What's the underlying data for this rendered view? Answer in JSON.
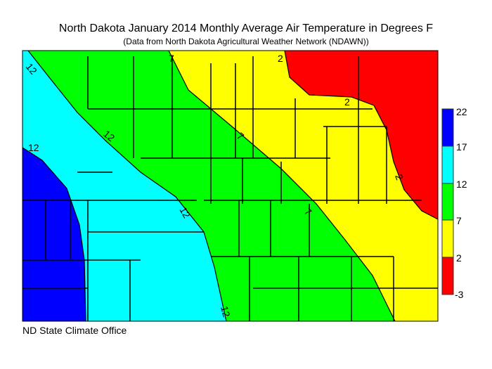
{
  "title": "North Dakota January 2014 Monthly Average Air Temperature in Degrees F",
  "subtitle": "(Data from North Dakota Agricultural Weather Network (NDAWN))",
  "footer": "ND State Climate Office",
  "legend": {
    "ticks": [
      "22",
      "17",
      "12",
      "7",
      "2",
      "-3"
    ],
    "bins": [
      {
        "range": "17-22",
        "color": "#0000ff"
      },
      {
        "range": "12-17",
        "color": "#00ffff"
      },
      {
        "range": "7-12",
        "color": "#00ff00"
      },
      {
        "range": "2-7",
        "color": "#ffff00"
      },
      {
        "range": "-3-2",
        "color": "#ff0000"
      }
    ]
  },
  "contour_labels": [
    "12",
    "12",
    "12",
    "12",
    "12",
    "7",
    "7",
    "7",
    "2",
    "2",
    "2"
  ]
}
